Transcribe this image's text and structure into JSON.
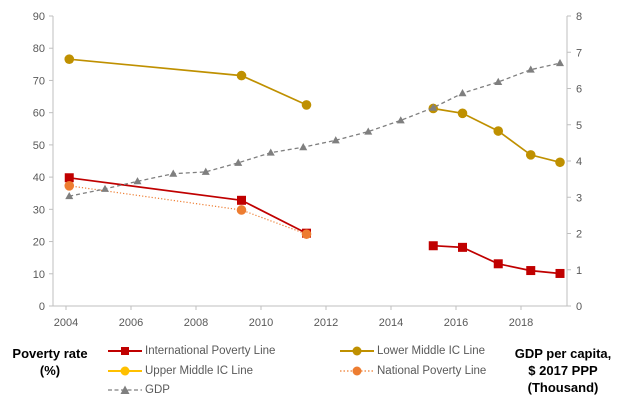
{
  "chart_data": {
    "type": "line",
    "title": "",
    "x_ticks": [
      2004,
      2006,
      2008,
      2010,
      2012,
      2014,
      2016,
      2018
    ],
    "xlim": [
      2004,
      2020
    ],
    "ylim_left": [
      0,
      90
    ],
    "y_ticks_left": [
      0,
      10,
      20,
      30,
      40,
      50,
      60,
      70,
      80,
      90
    ],
    "ylim_right": [
      0,
      8
    ],
    "y_ticks_right": [
      0,
      1,
      2,
      3,
      4,
      5,
      6,
      7,
      8
    ],
    "ylabel_left": [
      "Poverty rate",
      "(%)"
    ],
    "ylabel_right": [
      "GDP per capita,",
      "$ 2017 PPP",
      "(Thousand)"
    ],
    "legend_placement": "bottom",
    "series": [
      {
        "name": "International Poverty Line",
        "axis": "left",
        "color": "#c00000",
        "marker": "square",
        "dash": "solid",
        "segments": [
          [
            [
              2004.1,
              39.8
            ],
            [
              2009.4,
              32.8
            ],
            [
              2011.4,
              22.6
            ]
          ],
          [
            [
              2015.3,
              18.7
            ],
            [
              2016.2,
              18.2
            ],
            [
              2017.3,
              13.1
            ],
            [
              2018.3,
              11.0
            ],
            [
              2019.2,
              10.1
            ]
          ]
        ]
      },
      {
        "name": "Lower Middle IC Line",
        "axis": "left",
        "color": "#bf9000",
        "marker": "circle",
        "dash": "solid",
        "segments": [
          [
            [
              2004.1,
              76.6
            ],
            [
              2009.4,
              71.5
            ],
            [
              2011.4,
              62.4
            ]
          ],
          [
            [
              2015.3,
              61.3
            ],
            [
              2016.2,
              59.8
            ],
            [
              2017.3,
              54.3
            ],
            [
              2018.3,
              46.9
            ],
            [
              2019.2,
              44.6
            ]
          ]
        ]
      },
      {
        "name": "Upper Middle IC Line",
        "axis": "left",
        "color": "#ffc000",
        "marker": "circle",
        "dash": "solid",
        "segments": []
      },
      {
        "name": "National Poverty Line",
        "axis": "left",
        "color": "#ed7d31",
        "marker": "circle",
        "dash": "dotted",
        "segments": [
          [
            [
              2004.1,
              37.3
            ],
            [
              2009.4,
              29.8
            ],
            [
              2011.4,
              22.3
            ]
          ]
        ]
      },
      {
        "name": "GDP",
        "axis": "right",
        "color": "#7f7f7f",
        "marker": "triangle",
        "dash": "dashed",
        "segments": [
          [
            [
              2004.1,
              3.03
            ],
            [
              2005.2,
              3.23
            ],
            [
              2006.2,
              3.44
            ],
            [
              2007.3,
              3.65
            ],
            [
              2008.3,
              3.7
            ],
            [
              2009.3,
              3.95
            ],
            [
              2010.3,
              4.23
            ],
            [
              2011.3,
              4.38
            ],
            [
              2012.3,
              4.57
            ],
            [
              2013.3,
              4.81
            ],
            [
              2014.3,
              5.12
            ],
            [
              2015.3,
              5.47
            ],
            [
              2016.2,
              5.87
            ],
            [
              2017.3,
              6.18
            ],
            [
              2018.3,
              6.52
            ],
            [
              2019.2,
              6.7
            ]
          ]
        ]
      }
    ]
  }
}
